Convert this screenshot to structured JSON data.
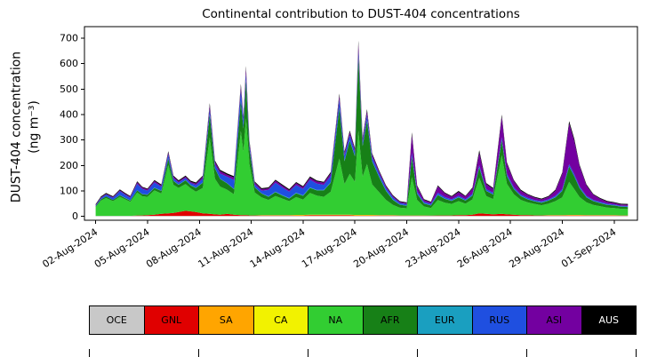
{
  "chart_data": {
    "type": "area",
    "stacked": true,
    "title": "Continental contribution to DUST-404 concentrations",
    "ylabel": "DUST-404 concentration",
    "ylabel2": "(ng m⁻³)",
    "ylim": [
      -15,
      745
    ],
    "yticks": [
      0,
      100,
      200,
      300,
      400,
      500,
      600,
      700
    ],
    "x_domain": [
      0.35,
      32.35
    ],
    "x_unit": "days since 2024-08-01",
    "xtick_days": [
      1,
      4,
      7,
      10,
      13,
      16,
      19,
      22,
      25,
      28,
      31
    ],
    "xtick_labels": [
      "02-Aug-2024",
      "05-Aug-2024",
      "08-Aug-2024",
      "11-Aug-2024",
      "14-Aug-2024",
      "17-Aug-2024",
      "20-Aug-2024",
      "23-Aug-2024",
      "26-Aug-2024",
      "29-Aug-2024",
      "01-Sep-2024"
    ],
    "series_order": [
      "OCE",
      "GNL",
      "SA",
      "CA",
      "NA",
      "AFR",
      "EUR",
      "RUS",
      "ASI",
      "AUS"
    ],
    "colors": {
      "OCE": "#c8c8c8",
      "GNL": "#e00000",
      "SA": "#ffa500",
      "CA": "#f2f200",
      "NA": "#32cd32",
      "AFR": "#178017",
      "EUR": "#1a9fc0",
      "RUS": "#1f4fe0",
      "ASI": "#7300a0",
      "AUS": "#000000"
    },
    "points": [
      [
        1.0,
        2,
        0,
        0,
        0,
        35,
        3,
        0,
        3,
        2,
        3
      ],
      [
        1.3,
        2,
        0,
        0,
        0,
        60,
        5,
        0,
        5,
        3,
        3
      ],
      [
        1.6,
        2,
        0,
        0,
        0,
        70,
        6,
        0,
        8,
        3,
        3
      ],
      [
        2.0,
        2,
        0,
        0,
        0,
        58,
        5,
        0,
        8,
        3,
        3
      ],
      [
        2.4,
        2,
        0,
        0,
        0,
        75,
        6,
        1,
        15,
        4,
        3
      ],
      [
        2.7,
        2,
        0,
        0,
        0,
        65,
        5,
        1,
        12,
        4,
        3
      ],
      [
        3.0,
        2,
        0,
        0,
        0,
        55,
        5,
        1,
        10,
        4,
        3
      ],
      [
        3.4,
        2,
        2,
        0,
        0,
        90,
        8,
        1,
        25,
        6,
        4
      ],
      [
        3.7,
        2,
        2,
        0,
        0,
        75,
        8,
        1,
        20,
        5,
        3
      ],
      [
        4.0,
        2,
        3,
        0,
        0,
        72,
        8,
        1,
        15,
        5,
        3
      ],
      [
        4.4,
        2,
        5,
        0,
        0,
        95,
        10,
        1,
        20,
        6,
        4
      ],
      [
        4.8,
        2,
        8,
        0,
        0,
        80,
        10,
        1,
        15,
        5,
        4
      ],
      [
        5.2,
        2,
        10,
        0,
        0,
        190,
        25,
        1,
        15,
        8,
        5
      ],
      [
        5.5,
        2,
        12,
        0,
        0,
        110,
        15,
        1,
        10,
        6,
        4
      ],
      [
        5.8,
        2,
        15,
        0,
        0,
        95,
        12,
        1,
        8,
        5,
        4
      ],
      [
        6.2,
        2,
        20,
        0,
        0,
        105,
        15,
        1,
        8,
        5,
        4
      ],
      [
        6.5,
        2,
        18,
        0,
        0,
        90,
        12,
        1,
        8,
        5,
        4
      ],
      [
        6.8,
        2,
        15,
        0,
        0,
        80,
        15,
        1,
        10,
        6,
        4
      ],
      [
        7.2,
        2,
        10,
        0,
        0,
        100,
        20,
        1,
        15,
        8,
        4
      ],
      [
        7.6,
        2,
        8,
        0,
        0,
        300,
        90,
        1,
        20,
        15,
        9
      ],
      [
        7.9,
        2,
        6,
        0,
        0,
        140,
        40,
        1,
        15,
        10,
        5
      ],
      [
        8.2,
        2,
        5,
        0,
        0,
        110,
        30,
        1,
        20,
        10,
        5
      ],
      [
        8.6,
        2,
        8,
        0,
        0,
        95,
        25,
        1,
        25,
        8,
        5
      ],
      [
        9.0,
        2,
        5,
        0,
        0,
        80,
        20,
        1,
        35,
        10,
        5
      ],
      [
        9.4,
        2,
        3,
        0,
        0,
        330,
        120,
        1,
        40,
        15,
        9
      ],
      [
        9.55,
        2,
        3,
        0,
        0,
        250,
        90,
        1,
        30,
        12,
        7
      ],
      [
        9.7,
        2,
        3,
        0,
        0,
        380,
        150,
        1,
        25,
        20,
        10
      ],
      [
        9.9,
        2,
        2,
        0,
        0,
        200,
        60,
        1,
        15,
        10,
        6
      ],
      [
        10.2,
        2,
        2,
        0,
        0,
        90,
        20,
        1,
        10,
        8,
        4
      ],
      [
        10.6,
        2,
        2,
        0,
        1,
        70,
        15,
        1,
        10,
        6,
        4
      ],
      [
        11.0,
        2,
        2,
        0,
        1,
        60,
        12,
        2,
        25,
        6,
        4
      ],
      [
        11.4,
        2,
        2,
        0,
        1,
        75,
        15,
        2,
        35,
        8,
        4
      ],
      [
        11.8,
        2,
        2,
        0,
        1,
        65,
        12,
        2,
        30,
        7,
        4
      ],
      [
        12.2,
        2,
        2,
        0,
        1,
        55,
        10,
        2,
        25,
        6,
        4
      ],
      [
        12.6,
        2,
        2,
        0,
        2,
        70,
        15,
        2,
        30,
        8,
        4
      ],
      [
        13.0,
        2,
        2,
        0,
        2,
        60,
        15,
        2,
        25,
        7,
        4
      ],
      [
        13.4,
        2,
        3,
        0,
        2,
        85,
        20,
        2,
        30,
        8,
        5
      ],
      [
        13.8,
        2,
        3,
        0,
        2,
        75,
        20,
        2,
        25,
        8,
        4
      ],
      [
        14.2,
        2,
        3,
        0,
        2,
        70,
        25,
        2,
        20,
        8,
        4
      ],
      [
        14.6,
        2,
        3,
        0,
        2,
        90,
        35,
        2,
        25,
        10,
        5
      ],
      [
        15.1,
        2,
        3,
        0,
        2,
        220,
        200,
        2,
        30,
        15,
        8
      ],
      [
        15.4,
        2,
        3,
        0,
        2,
        120,
        90,
        2,
        20,
        10,
        5
      ],
      [
        15.7,
        2,
        3,
        0,
        2,
        160,
        130,
        2,
        20,
        12,
        6
      ],
      [
        16.0,
        2,
        2,
        0,
        2,
        130,
        100,
        2,
        15,
        10,
        5
      ],
      [
        16.2,
        2,
        2,
        0,
        2,
        330,
        290,
        2,
        25,
        25,
        12
      ],
      [
        16.45,
        2,
        2,
        0,
        2,
        150,
        120,
        2,
        15,
        12,
        6
      ],
      [
        16.7,
        2,
        2,
        0,
        2,
        200,
        170,
        2,
        20,
        15,
        8
      ],
      [
        17.0,
        2,
        2,
        0,
        2,
        120,
        90,
        2,
        15,
        10,
        5
      ],
      [
        17.4,
        2,
        2,
        0,
        1,
        90,
        60,
        2,
        12,
        8,
        4
      ],
      [
        17.8,
        2,
        2,
        0,
        1,
        60,
        35,
        2,
        10,
        6,
        4
      ],
      [
        18.2,
        2,
        2,
        0,
        1,
        40,
        20,
        2,
        8,
        5,
        3
      ],
      [
        18.6,
        2,
        1,
        0,
        1,
        30,
        12,
        1,
        6,
        4,
        3
      ],
      [
        19.0,
        2,
        1,
        0,
        1,
        28,
        10,
        1,
        5,
        4,
        3
      ],
      [
        19.3,
        2,
        1,
        0,
        1,
        150,
        80,
        1,
        15,
        70,
        10
      ],
      [
        19.6,
        2,
        1,
        0,
        1,
        60,
        25,
        1,
        8,
        20,
        4
      ],
      [
        20.0,
        2,
        1,
        0,
        1,
        35,
        12,
        1,
        5,
        8,
        3
      ],
      [
        20.4,
        2,
        1,
        0,
        0,
        30,
        10,
        1,
        5,
        6,
        3
      ],
      [
        20.8,
        2,
        2,
        0,
        0,
        60,
        20,
        1,
        8,
        25,
        4
      ],
      [
        21.2,
        2,
        2,
        0,
        0,
        50,
        15,
        1,
        6,
        15,
        3
      ],
      [
        21.6,
        2,
        2,
        0,
        0,
        45,
        12,
        1,
        5,
        10,
        3
      ],
      [
        22.0,
        2,
        3,
        0,
        0,
        55,
        15,
        1,
        5,
        15,
        4
      ],
      [
        22.4,
        2,
        3,
        0,
        0,
        45,
        12,
        1,
        5,
        10,
        3
      ],
      [
        22.8,
        2,
        5,
        0,
        0,
        60,
        15,
        1,
        6,
        20,
        4
      ],
      [
        23.2,
        2,
        10,
        0,
        0,
        140,
        40,
        1,
        8,
        50,
        9
      ],
      [
        23.6,
        2,
        8,
        0,
        0,
        70,
        20,
        1,
        6,
        20,
        4
      ],
      [
        24.0,
        2,
        6,
        0,
        0,
        60,
        18,
        1,
        6,
        15,
        4
      ],
      [
        24.5,
        2,
        8,
        0,
        0,
        230,
        60,
        1,
        10,
        80,
        9
      ],
      [
        24.8,
        2,
        6,
        0,
        0,
        120,
        30,
        1,
        8,
        40,
        5
      ],
      [
        25.2,
        2,
        5,
        0,
        0,
        80,
        20,
        1,
        6,
        25,
        4
      ],
      [
        25.6,
        2,
        3,
        0,
        0,
        60,
        15,
        1,
        5,
        15,
        4
      ],
      [
        26.0,
        2,
        3,
        0,
        0,
        50,
        12,
        1,
        5,
        12,
        3
      ],
      [
        26.4,
        2,
        2,
        0,
        0,
        45,
        10,
        1,
        4,
        10,
        3
      ],
      [
        26.8,
        2,
        2,
        0,
        0,
        40,
        10,
        1,
        4,
        8,
        3
      ],
      [
        27.2,
        2,
        2,
        0,
        1,
        45,
        12,
        1,
        4,
        10,
        3
      ],
      [
        27.6,
        2,
        2,
        0,
        1,
        55,
        15,
        1,
        5,
        20,
        4
      ],
      [
        28.0,
        2,
        2,
        0,
        1,
        70,
        25,
        1,
        6,
        60,
        5
      ],
      [
        28.4,
        2,
        2,
        1,
        1,
        130,
        60,
        1,
        8,
        160,
        9
      ],
      [
        28.7,
        2,
        2,
        1,
        1,
        100,
        50,
        1,
        8,
        130,
        8
      ],
      [
        29.0,
        2,
        2,
        1,
        1,
        70,
        35,
        1,
        6,
        80,
        5
      ],
      [
        29.4,
        2,
        2,
        0,
        1,
        50,
        20,
        1,
        5,
        40,
        4
      ],
      [
        29.8,
        2,
        2,
        0,
        1,
        40,
        15,
        1,
        4,
        20,
        3
      ],
      [
        30.2,
        2,
        2,
        0,
        1,
        35,
        12,
        1,
        4,
        12,
        3
      ],
      [
        30.6,
        2,
        2,
        0,
        1,
        30,
        10,
        1,
        4,
        8,
        3
      ],
      [
        31.0,
        2,
        2,
        0,
        1,
        28,
        10,
        1,
        3,
        6,
        3
      ],
      [
        31.4,
        2,
        1,
        0,
        1,
        26,
        8,
        1,
        3,
        5,
        3
      ],
      [
        31.8,
        2,
        1,
        0,
        1,
        25,
        8,
        1,
        3,
        5,
        3
      ]
    ]
  },
  "legend": {
    "items": [
      {
        "label": "OCE",
        "color": "#c8c8c8",
        "text_color": "#000000"
      },
      {
        "label": "GNL",
        "color": "#e00000",
        "text_color": "#000000"
      },
      {
        "label": "SA",
        "color": "#ffa500",
        "text_color": "#000000"
      },
      {
        "label": "CA",
        "color": "#f2f200",
        "text_color": "#000000"
      },
      {
        "label": "NA",
        "color": "#32cd32",
        "text_color": "#000000"
      },
      {
        "label": "AFR",
        "color": "#178017",
        "text_color": "#000000"
      },
      {
        "label": "EUR",
        "color": "#1a9fc0",
        "text_color": "#000000"
      },
      {
        "label": "RUS",
        "color": "#1f4fe0",
        "text_color": "#000000"
      },
      {
        "label": "ASI",
        "color": "#7300a0",
        "text_color": "#000000"
      },
      {
        "label": "AUS",
        "color": "#000000",
        "text_color": "#ffffff"
      }
    ]
  }
}
